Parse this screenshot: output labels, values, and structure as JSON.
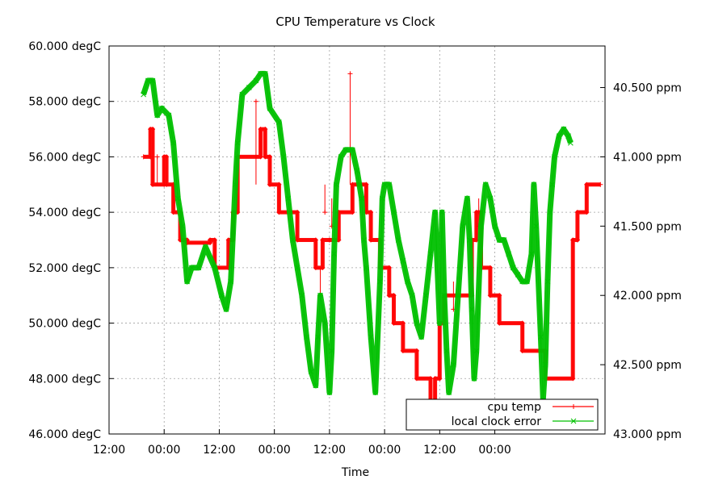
{
  "chart_data": {
    "type": "line",
    "title": "CPU Temperature vs Clock",
    "xlabel": "Time",
    "ylabel": "",
    "y2label": "",
    "x_ticks": [
      "12:00",
      "00:00",
      "12:00",
      "00:00",
      "12:00",
      "00:00",
      "12:00",
      "00:00"
    ],
    "x_range_hours": [
      0,
      108
    ],
    "x_tick_step_hours": 12,
    "y_ticks": [
      "60.000 degC",
      "58.000 degC",
      "56.000 degC",
      "54.000 degC",
      "52.000 degC",
      "50.000 degC",
      "48.000 degC",
      "46.000 degC"
    ],
    "ylim": [
      46,
      60
    ],
    "y2_ticks": [
      "40.500 ppm",
      "41.000 ppm",
      "41.500 ppm",
      "42.000 ppm",
      "42.500 ppm",
      "43.000 ppm"
    ],
    "y2lim": [
      43.0,
      40.2
    ],
    "y2_inverted": true,
    "grid": true,
    "legend_position": "bottom-right",
    "series": [
      {
        "name": "cpu temp",
        "color": "#ff0000",
        "marker": "+",
        "axis": "y",
        "points": [
          [
            7.5,
            56
          ],
          [
            9,
            56
          ],
          [
            9,
            57
          ],
          [
            9.5,
            57
          ],
          [
            9.5,
            55
          ],
          [
            12,
            55
          ],
          [
            12,
            56
          ],
          [
            12.5,
            56
          ],
          [
            12.5,
            55
          ],
          [
            14,
            55
          ],
          [
            14,
            54
          ],
          [
            15.5,
            54
          ],
          [
            15.5,
            53
          ],
          [
            17,
            53
          ],
          [
            17,
            52.9
          ],
          [
            22,
            52.9
          ],
          [
            22,
            53
          ],
          [
            23,
            53
          ],
          [
            23,
            52
          ],
          [
            26,
            52
          ],
          [
            26,
            53
          ],
          [
            27,
            53
          ],
          [
            27,
            54
          ],
          [
            28,
            54
          ],
          [
            28,
            56
          ],
          [
            33,
            56
          ],
          [
            33,
            57
          ],
          [
            34,
            57
          ],
          [
            34,
            56
          ],
          [
            35,
            56
          ],
          [
            35,
            55
          ],
          [
            37,
            55
          ],
          [
            37,
            54
          ],
          [
            41,
            54
          ],
          [
            41,
            53
          ],
          [
            45,
            53
          ],
          [
            45,
            52
          ],
          [
            46.5,
            52
          ],
          [
            46.5,
            53
          ],
          [
            48,
            53
          ],
          [
            48,
            53
          ],
          [
            50,
            53
          ],
          [
            50,
            54
          ],
          [
            53,
            54
          ],
          [
            53,
            55
          ],
          [
            56,
            55
          ],
          [
            56,
            54
          ],
          [
            57,
            54
          ],
          [
            57,
            53
          ],
          [
            59,
            53
          ],
          [
            59,
            52
          ],
          [
            61,
            52
          ],
          [
            61,
            51
          ],
          [
            62,
            51
          ],
          [
            62,
            50
          ],
          [
            64,
            50
          ],
          [
            64,
            49
          ],
          [
            67,
            49
          ],
          [
            67,
            48
          ],
          [
            70,
            48
          ],
          [
            70,
            47
          ],
          [
            71,
            47
          ],
          [
            71,
            48
          ],
          [
            72,
            48
          ],
          [
            72,
            50
          ],
          [
            73,
            50
          ],
          [
            73,
            51
          ],
          [
            79,
            51
          ],
          [
            79,
            53
          ],
          [
            80,
            53
          ],
          [
            80,
            54
          ],
          [
            81,
            54
          ],
          [
            81,
            52
          ],
          [
            83,
            52
          ],
          [
            83,
            51
          ],
          [
            85,
            51
          ],
          [
            85,
            50
          ],
          [
            90,
            50
          ],
          [
            90,
            49
          ],
          [
            95,
            49
          ],
          [
            95,
            48
          ],
          [
            101,
            48
          ],
          [
            101,
            53
          ],
          [
            102,
            53
          ],
          [
            102,
            54
          ],
          [
            104,
            54
          ],
          [
            104,
            55
          ],
          [
            107,
            55
          ]
        ],
        "spikes": [
          [
            10.5,
            56
          ],
          [
            32,
            58
          ],
          [
            52.5,
            59
          ],
          [
            46,
            51
          ],
          [
            48.5,
            53.5
          ],
          [
            47,
            54
          ],
          [
            75,
            50.5
          ],
          [
            80.5,
            53.5
          ]
        ]
      },
      {
        "name": "local clock error",
        "color": "#00c000",
        "marker": "x",
        "axis": "y2",
        "points": [
          [
            7.5,
            40.55
          ],
          [
            8.5,
            40.45
          ],
          [
            9.5,
            40.45
          ],
          [
            10.5,
            40.7
          ],
          [
            11.5,
            40.65
          ],
          [
            13,
            40.7
          ],
          [
            14,
            40.9
          ],
          [
            15,
            41.3
          ],
          [
            16,
            41.5
          ],
          [
            17,
            41.9
          ],
          [
            18,
            41.8
          ],
          [
            19.5,
            41.8
          ],
          [
            21,
            41.65
          ],
          [
            23,
            41.8
          ],
          [
            24.5,
            42.0
          ],
          [
            25.5,
            42.1
          ],
          [
            26.5,
            41.9
          ],
          [
            27.5,
            41.2
          ],
          [
            28,
            40.9
          ],
          [
            29,
            40.55
          ],
          [
            30.5,
            40.5
          ],
          [
            32,
            40.45
          ],
          [
            33,
            40.4
          ],
          [
            34,
            40.4
          ],
          [
            35,
            40.65
          ],
          [
            37,
            40.75
          ],
          [
            38,
            41.0
          ],
          [
            39,
            41.3
          ],
          [
            40,
            41.6
          ],
          [
            41,
            41.8
          ],
          [
            42,
            42.0
          ],
          [
            43,
            42.3
          ],
          [
            44,
            42.55
          ],
          [
            45,
            42.65
          ],
          [
            45.5,
            42.3
          ],
          [
            46,
            42.0
          ],
          [
            47,
            42.2
          ],
          [
            48,
            42.7
          ],
          [
            48.5,
            42.4
          ],
          [
            49,
            41.7
          ],
          [
            49.5,
            41.2
          ],
          [
            50.5,
            41.0
          ],
          [
            51.5,
            40.95
          ],
          [
            53,
            40.95
          ],
          [
            54,
            41.1
          ],
          [
            55,
            41.3
          ],
          [
            55.5,
            41.6
          ],
          [
            56,
            41.8
          ],
          [
            57,
            42.3
          ],
          [
            58,
            42.7
          ],
          [
            59,
            41.9
          ],
          [
            59.5,
            41.3
          ],
          [
            60,
            41.2
          ],
          [
            61,
            41.2
          ],
          [
            62,
            41.4
          ],
          [
            63,
            41.6
          ],
          [
            64,
            41.75
          ],
          [
            65,
            41.9
          ],
          [
            66,
            42.0
          ],
          [
            67,
            42.2
          ],
          [
            68,
            42.3
          ],
          [
            69,
            42.0
          ],
          [
            70,
            41.7
          ],
          [
            71,
            41.4
          ],
          [
            72,
            42.2
          ],
          [
            72.5,
            41.4
          ],
          [
            73,
            42.0
          ],
          [
            73.5,
            42.4
          ],
          [
            74,
            42.7
          ],
          [
            75,
            42.5
          ],
          [
            76,
            42.0
          ],
          [
            77,
            41.5
          ],
          [
            78,
            41.3
          ],
          [
            78.5,
            41.6
          ],
          [
            79,
            42.1
          ],
          [
            79.5,
            42.6
          ],
          [
            80,
            42.4
          ],
          [
            81,
            41.5
          ],
          [
            82,
            41.2
          ],
          [
            83,
            41.3
          ],
          [
            84,
            41.5
          ],
          [
            85,
            41.6
          ],
          [
            86,
            41.6
          ],
          [
            87,
            41.7
          ],
          [
            88,
            41.8
          ],
          [
            89,
            41.85
          ],
          [
            90,
            41.9
          ],
          [
            91,
            41.9
          ],
          [
            92,
            41.7
          ],
          [
            92.5,
            41.2
          ],
          [
            93,
            41.5
          ],
          [
            94,
            42.3
          ],
          [
            94.5,
            42.75
          ],
          [
            95,
            42.5
          ],
          [
            95.5,
            41.9
          ],
          [
            96,
            41.4
          ],
          [
            96.5,
            41.2
          ],
          [
            97,
            41.0
          ],
          [
            98,
            40.85
          ],
          [
            99,
            40.8
          ],
          [
            100,
            40.85
          ],
          [
            100.5,
            40.9
          ]
        ]
      }
    ]
  }
}
